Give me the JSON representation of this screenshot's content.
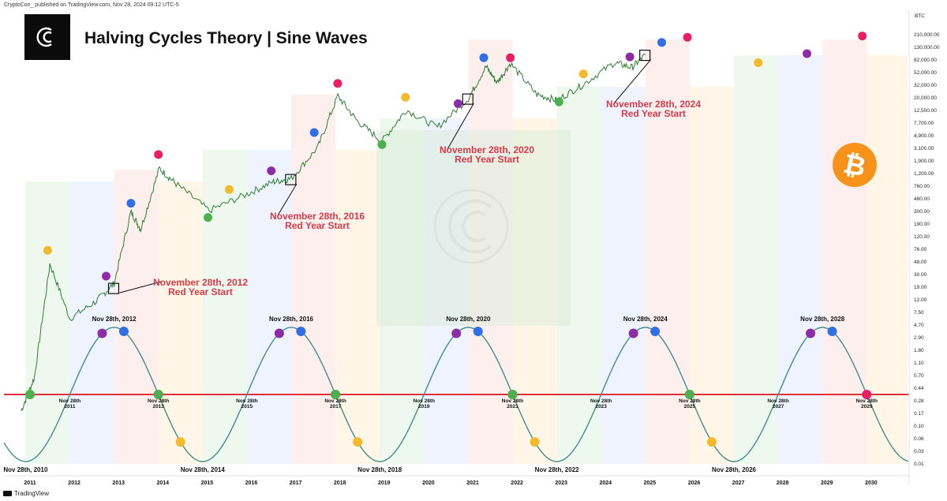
{
  "header": {
    "credit": "CryptoCon_ published on TradingView.com, Nov 28, 2024 09:12 UTC-5",
    "title": "Halving Cycles Theory | Sine Waves",
    "currency": "BTC",
    "footer": "TradingView"
  },
  "colors": {
    "red_line": "#e0303a",
    "sine": "#3f8f88",
    "price": "#2e7d32",
    "annotation": "#d93a48",
    "dot_green": "#4caf50",
    "dot_yellow": "#f4b92d",
    "dot_purple": "#8e2ca8",
    "dot_blue": "#2f6fe8",
    "dot_red": "#e91e63",
    "btc_orange": "#f7931a"
  },
  "chart_data": {
    "type": "line",
    "title": "Halving Cycles Theory | Sine Waves",
    "y_scale": "log",
    "price_ticks": [
      "210,000.00",
      "130,000.00",
      "82,000.00",
      "52,000.00",
      "32,000.00",
      "20,000.00",
      "12,500.00",
      "7,700.00",
      "4,900.00",
      "3,100.00",
      "1,900.00",
      "1,200.00",
      "760.00",
      "480.00",
      "300.00",
      "190.00",
      "120.00",
      "76.00",
      "48.00",
      "30.00",
      "19.00",
      "12.00",
      "7.50",
      "4.70",
      "2.90",
      "1.80",
      "1.10",
      "0.70",
      "0.44",
      "0.28",
      "0.17",
      "0.10",
      "0.06",
      "0.03",
      "0.01"
    ],
    "years": [
      "2011",
      "2012",
      "2013",
      "2014",
      "2015",
      "2016",
      "2017",
      "2018",
      "2019",
      "2020",
      "2021",
      "2022",
      "2023",
      "2024",
      "2025",
      "2026",
      "2027",
      "2028",
      "2029",
      "2030"
    ],
    "price_anchors": [
      {
        "year": 2010.8,
        "price": 0.08
      },
      {
        "year": 2011.1,
        "price": 0.3
      },
      {
        "year": 2011.45,
        "price": 26
      },
      {
        "year": 2011.9,
        "price": 3
      },
      {
        "year": 2012.5,
        "price": 6
      },
      {
        "year": 2012.9,
        "price": 12
      },
      {
        "year": 2013.28,
        "price": 200
      },
      {
        "year": 2013.5,
        "price": 100
      },
      {
        "year": 2013.92,
        "price": 1100
      },
      {
        "year": 2014.3,
        "price": 600
      },
      {
        "year": 2015.05,
        "price": 210
      },
      {
        "year": 2015.9,
        "price": 400
      },
      {
        "year": 2016.5,
        "price": 650
      },
      {
        "year": 2016.9,
        "price": 740
      },
      {
        "year": 2017.5,
        "price": 2500
      },
      {
        "year": 2017.95,
        "price": 19000
      },
      {
        "year": 2018.4,
        "price": 7000
      },
      {
        "year": 2018.95,
        "price": 3200
      },
      {
        "year": 2019.5,
        "price": 11000
      },
      {
        "year": 2020.2,
        "price": 5500
      },
      {
        "year": 2020.9,
        "price": 17000
      },
      {
        "year": 2021.3,
        "price": 60000
      },
      {
        "year": 2021.55,
        "price": 32000
      },
      {
        "year": 2021.85,
        "price": 68000
      },
      {
        "year": 2022.45,
        "price": 20000
      },
      {
        "year": 2022.9,
        "price": 16000
      },
      {
        "year": 2023.5,
        "price": 30000
      },
      {
        "year": 2024.2,
        "price": 70000
      },
      {
        "year": 2024.6,
        "price": 58000
      },
      {
        "year": 2024.9,
        "price": 95000
      }
    ],
    "sine": {
      "period_years": 4,
      "peak_label_prefix": "Nov 28th,"
    },
    "peak_labels": [
      "Nov 28th, 2012",
      "Nov 28th, 2016",
      "Nov 28th, 2020",
      "Nov 28th, 2024",
      "Nov 28th, 2028"
    ],
    "trough_labels": [
      "Nov 28th, 2010",
      "Nov 28th, 2014",
      "Nov 28th, 2018",
      "Nov 28th, 2022",
      "Nov 28th, 2026"
    ],
    "crossing_labels": [
      [
        "Nov 28th",
        "2011"
      ],
      [
        "Nov 28th",
        "2013"
      ],
      [
        "Nov 28th",
        "2015"
      ],
      [
        "Nov 28th",
        "2017"
      ],
      [
        "Nov 28th",
        "2019"
      ],
      [
        "Nov 28th",
        "2021"
      ],
      [
        "Nov 28th",
        "2023"
      ],
      [
        "Nov 28th",
        "2025"
      ],
      [
        "Nov 28th",
        "2027"
      ],
      [
        "Nov 28th",
        "2029"
      ]
    ],
    "annotations": [
      {
        "line1": "November 28th, 2012",
        "line2": "Red Year Start"
      },
      {
        "line1": "November 28th, 2016",
        "line2": "Red Year Start"
      },
      {
        "line1": "November 28th, 2020",
        "line2": "Red Year Start"
      },
      {
        "line1": "November 28th, 2024",
        "line2": "Red Year Start"
      }
    ],
    "phase_colors": [
      "green",
      "yellow",
      "purple",
      "blue",
      "red"
    ]
  }
}
